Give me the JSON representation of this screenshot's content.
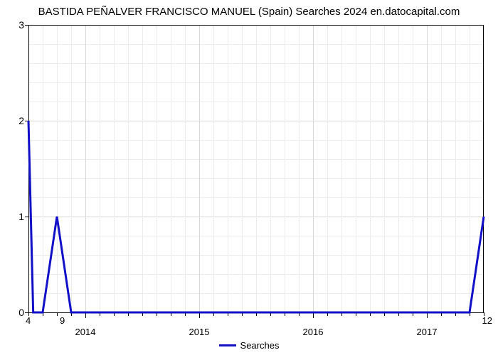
{
  "chart": {
    "type": "line",
    "title": "BASTIDA PEÑALVER FRANCISCO MANUEL (Spain) Searches 2024 en.datocapital.com",
    "title_fontsize": 15,
    "title_color": "#000000",
    "background_color": "#ffffff",
    "plot_bg_color": "#ffffff",
    "series": {
      "name": "Searches",
      "color": "#1110c6",
      "line_width": 3,
      "x": [
        0,
        0.5,
        1.5,
        3.0,
        4.5,
        6.0,
        46.5,
        48.0
      ],
      "y": [
        2,
        0,
        0,
        1,
        0,
        0,
        0,
        1
      ]
    },
    "x_axis": {
      "min": 0,
      "max": 48,
      "major_ticks": [
        {
          "pos": 6,
          "label": "2014"
        },
        {
          "pos": 18,
          "label": "2015"
        },
        {
          "pos": 30,
          "label": "2016"
        },
        {
          "pos": 42,
          "label": "2017"
        }
      ],
      "minor_tick_step": 1.5,
      "left_corner_label": "4",
      "right_corner_label": "12",
      "secondary_left_label": "9",
      "label_fontsize": 13
    },
    "y_axis": {
      "min": 0,
      "max": 3,
      "ticks": [
        0,
        1,
        2,
        3
      ],
      "minor_tick_step": 0.2,
      "label_fontsize": 14
    },
    "grid": {
      "color": "#d8d8d8",
      "show_major_h": true,
      "show_minor_h": true,
      "show_major_v": true,
      "show_minor_v": true
    },
    "legend": {
      "position": "bottom-center",
      "items": [
        {
          "label": "Searches",
          "color": "#1110c6"
        }
      ],
      "fontsize": 13
    }
  }
}
